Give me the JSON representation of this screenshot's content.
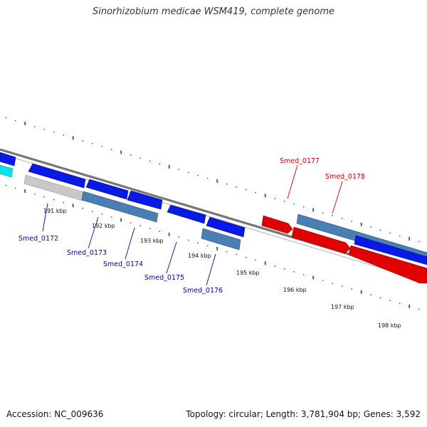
{
  "title": "Sinorhizobium medicae WSM419, complete genome",
  "footer": {
    "accession": "Accession: NC_009636",
    "summary": "Topology: circular; Length: 3,781,904 bp; Genes: 3,592"
  },
  "colors": {
    "forward_gene": "#e00000",
    "reverse_gene": "#0a1ae6",
    "cds_steel": "#4a7fb5",
    "cyan_gene": "#00e5ee",
    "gray_gene": "#c8c8c8",
    "backbone": "#888888",
    "ticks": "#1a7a1a",
    "label_red": "#cc0000",
    "label_blue": "#0000aa"
  },
  "ticks": [
    {
      "label": "191 kbp"
    },
    {
      "label": "192 kbp"
    },
    {
      "label": "193 kbp"
    },
    {
      "label": "194 kbp"
    },
    {
      "label": "195 kbp"
    },
    {
      "label": "196 kbp"
    },
    {
      "label": "197 kbp"
    },
    {
      "label": "198 kbp"
    }
  ],
  "genes": [
    {
      "name": "Smed_0172",
      "strand": "reverse"
    },
    {
      "name": "Smed_0173",
      "strand": "reverse"
    },
    {
      "name": "Smed_0174",
      "strand": "reverse"
    },
    {
      "name": "Smed_0175",
      "strand": "reverse"
    },
    {
      "name": "Smed_0176",
      "strand": "reverse"
    },
    {
      "name": "Smed_0177",
      "strand": "forward"
    },
    {
      "name": "Smed_0178",
      "strand": "forward"
    }
  ]
}
